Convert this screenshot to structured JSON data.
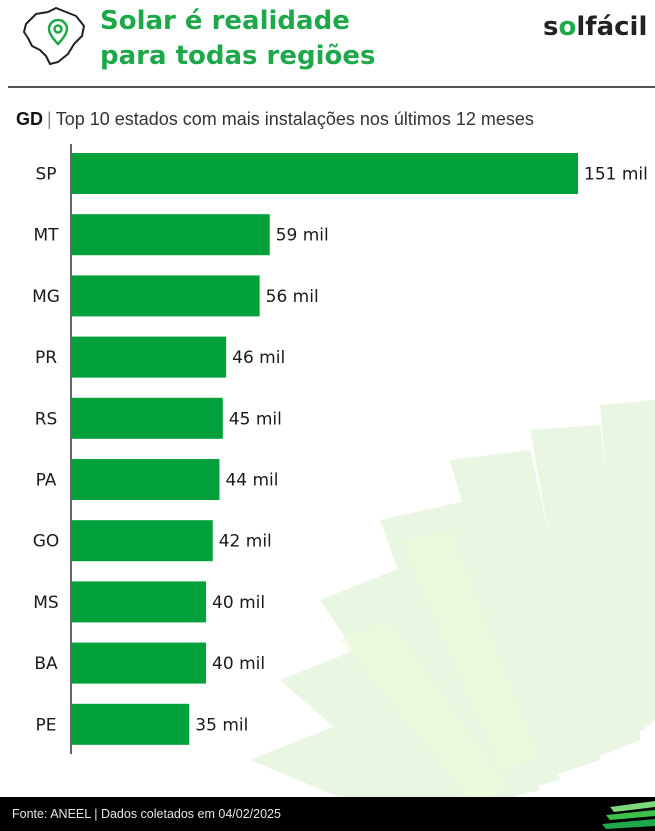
{
  "header": {
    "title_line1": "Solar é realidade",
    "title_line2": "para todas regiões",
    "brand_pre": "s",
    "brand_o": "o",
    "brand_post": "lfácil",
    "icon": "brazil-map-pin-icon"
  },
  "subtitle": {
    "tag": "GD",
    "separator": "|",
    "text": "Top 10 estados com mais instalações nos últimos 12 meses"
  },
  "chart_data": {
    "type": "bar",
    "orientation": "horizontal",
    "categories": [
      "SP",
      "MT",
      "MG",
      "PR",
      "RS",
      "PA",
      "GO",
      "MS",
      "BA",
      "PE"
    ],
    "values": [
      151,
      59,
      56,
      46,
      45,
      44,
      42,
      40,
      40,
      35
    ],
    "value_labels": [
      "151 mil",
      "59 mil",
      "56 mil",
      "46 mil",
      "45 mil",
      "44 mil",
      "42 mil",
      "40 mil",
      "40 mil",
      "35 mil"
    ],
    "unit": "mil",
    "xlim": [
      0,
      151
    ],
    "bar_color": "#00a03a",
    "grid": false,
    "legend": "none"
  },
  "footer": {
    "source": "Fonte: ANEEL | Dados coletados em 04/02/2025"
  },
  "colors": {
    "accent": "#1fa84a",
    "bar": "#00a03a",
    "footer_bg": "#000000"
  }
}
